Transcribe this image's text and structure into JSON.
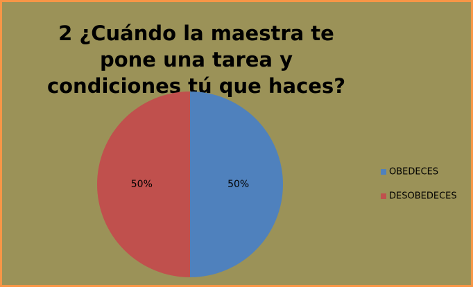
{
  "chart_data": {
    "type": "pie",
    "title": "2 ¿Cuándo la maestra te pone una tarea y condiciones tú que haces?",
    "categories": [
      "OBEDECES",
      "DESOBEDECES"
    ],
    "values": [
      50,
      50
    ],
    "value_labels": [
      "50%",
      "50%"
    ],
    "colors": [
      "#4f81bd",
      "#c0504d"
    ],
    "legend": "right"
  }
}
